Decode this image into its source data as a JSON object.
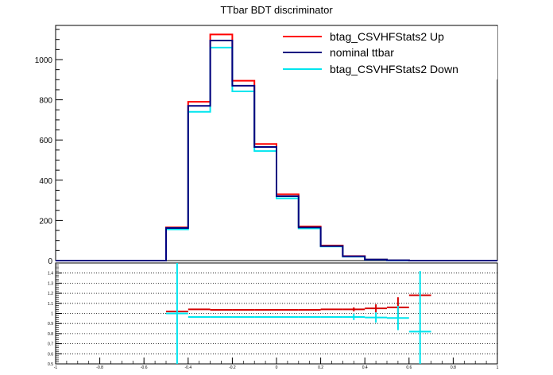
{
  "chart_data": [
    {
      "type": "line",
      "panel": "main",
      "title": "TTbar BDT discriminator",
      "xlabel": "",
      "ylabel": "",
      "xlim": [
        -1,
        1
      ],
      "ylim": [
        0,
        1170
      ],
      "grid": false,
      "legend_position": "top-right",
      "y_ticks": [
        0,
        200,
        400,
        600,
        800,
        1000
      ],
      "y_tick_labels": [
        "0",
        "200",
        "400",
        "600",
        "800",
        "1000"
      ],
      "bin_edges": [
        -1.0,
        -0.9,
        -0.8,
        -0.7,
        -0.6,
        -0.5,
        -0.4,
        -0.3,
        -0.2,
        -0.1,
        0.0,
        0.1,
        0.2,
        0.3,
        0.4,
        0.5,
        0.6,
        0.7,
        0.8,
        0.9,
        1.0
      ],
      "series": [
        {
          "name": "btag_CSVHFStats2 Up",
          "color": "#ff0000",
          "values": [
            0,
            0,
            0,
            0,
            0,
            165,
            790,
            1125,
            895,
            580,
            330,
            170,
            75,
            22,
            6,
            2,
            0,
            0,
            0,
            0
          ]
        },
        {
          "name": "nominal ttbar",
          "color": "#000080",
          "values": [
            0,
            0,
            0,
            0,
            0,
            162,
            770,
            1095,
            870,
            565,
            320,
            165,
            72,
            21,
            5,
            1.5,
            0,
            0,
            0,
            0
          ]
        },
        {
          "name": "btag_CSVHFStats2 Down",
          "color": "#00e5ee",
          "values": [
            0,
            0,
            0,
            0,
            0,
            155,
            740,
            1060,
            842,
            545,
            310,
            160,
            70,
            20,
            5,
            1.2,
            0,
            0,
            0,
            0
          ]
        }
      ]
    },
    {
      "type": "scatter",
      "panel": "ratio",
      "xlim": [
        -1,
        1
      ],
      "ylim": [
        0.5,
        1.5
      ],
      "grid": true,
      "y_ticks": [
        0.5,
        0.6,
        0.7,
        0.8,
        0.9,
        1.0,
        1.1,
        1.2,
        1.3,
        1.4
      ],
      "y_tick_labels": [
        "0.5",
        "0.6",
        "0.7",
        "0.8",
        "0.9",
        "1",
        "1.1",
        "1.2",
        "1.3",
        "1.4"
      ],
      "x_ticks": [
        -1,
        -0.8,
        -0.6,
        -0.4,
        -0.2,
        0,
        0.2,
        0.4,
        0.6,
        0.8,
        1
      ],
      "x_tick_labels": [
        "-1",
        "-0.8",
        "-0.6",
        "-0.4",
        "-0.2",
        "0",
        "0.2",
        "0.4",
        "0.6",
        "0.8",
        "1"
      ],
      "bin_edges": [
        -1.0,
        -0.9,
        -0.8,
        -0.7,
        -0.6,
        -0.5,
        -0.4,
        -0.3,
        -0.2,
        -0.1,
        0.0,
        0.1,
        0.2,
        0.3,
        0.4,
        0.5,
        0.6,
        0.7,
        0.8,
        0.9,
        1.0
      ],
      "series": [
        {
          "name": "btag_CSVHFStats2 Up",
          "color": "#d40000",
          "values": [
            null,
            null,
            null,
            null,
            null,
            1.02,
            1.04,
            1.035,
            1.035,
            1.035,
            1.035,
            1.035,
            1.04,
            1.04,
            1.05,
            1.06,
            1.18,
            null,
            null,
            null
          ],
          "errors": [
            null,
            null,
            null,
            null,
            null,
            0.0,
            0.0,
            0.0,
            0.0,
            0.0,
            0.0,
            0.0,
            0.0,
            0.02,
            0.04,
            0.1,
            0.0,
            null,
            null,
            null
          ]
        },
        {
          "name": "btag_CSVHFStats2 Down",
          "color": "#00e5ee",
          "values": [
            null,
            null,
            null,
            null,
            null,
            1.0,
            0.965,
            0.965,
            0.965,
            0.965,
            0.965,
            0.965,
            0.965,
            0.965,
            0.96,
            0.955,
            0.82,
            null,
            null,
            null
          ],
          "errors": [
            null,
            null,
            null,
            null,
            null,
            0.6,
            0.0,
            0.0,
            0.0,
            0.0,
            0.0,
            0.0,
            0.0,
            0.03,
            0.05,
            0.12,
            0.6,
            null,
            null,
            null
          ]
        }
      ]
    }
  ]
}
